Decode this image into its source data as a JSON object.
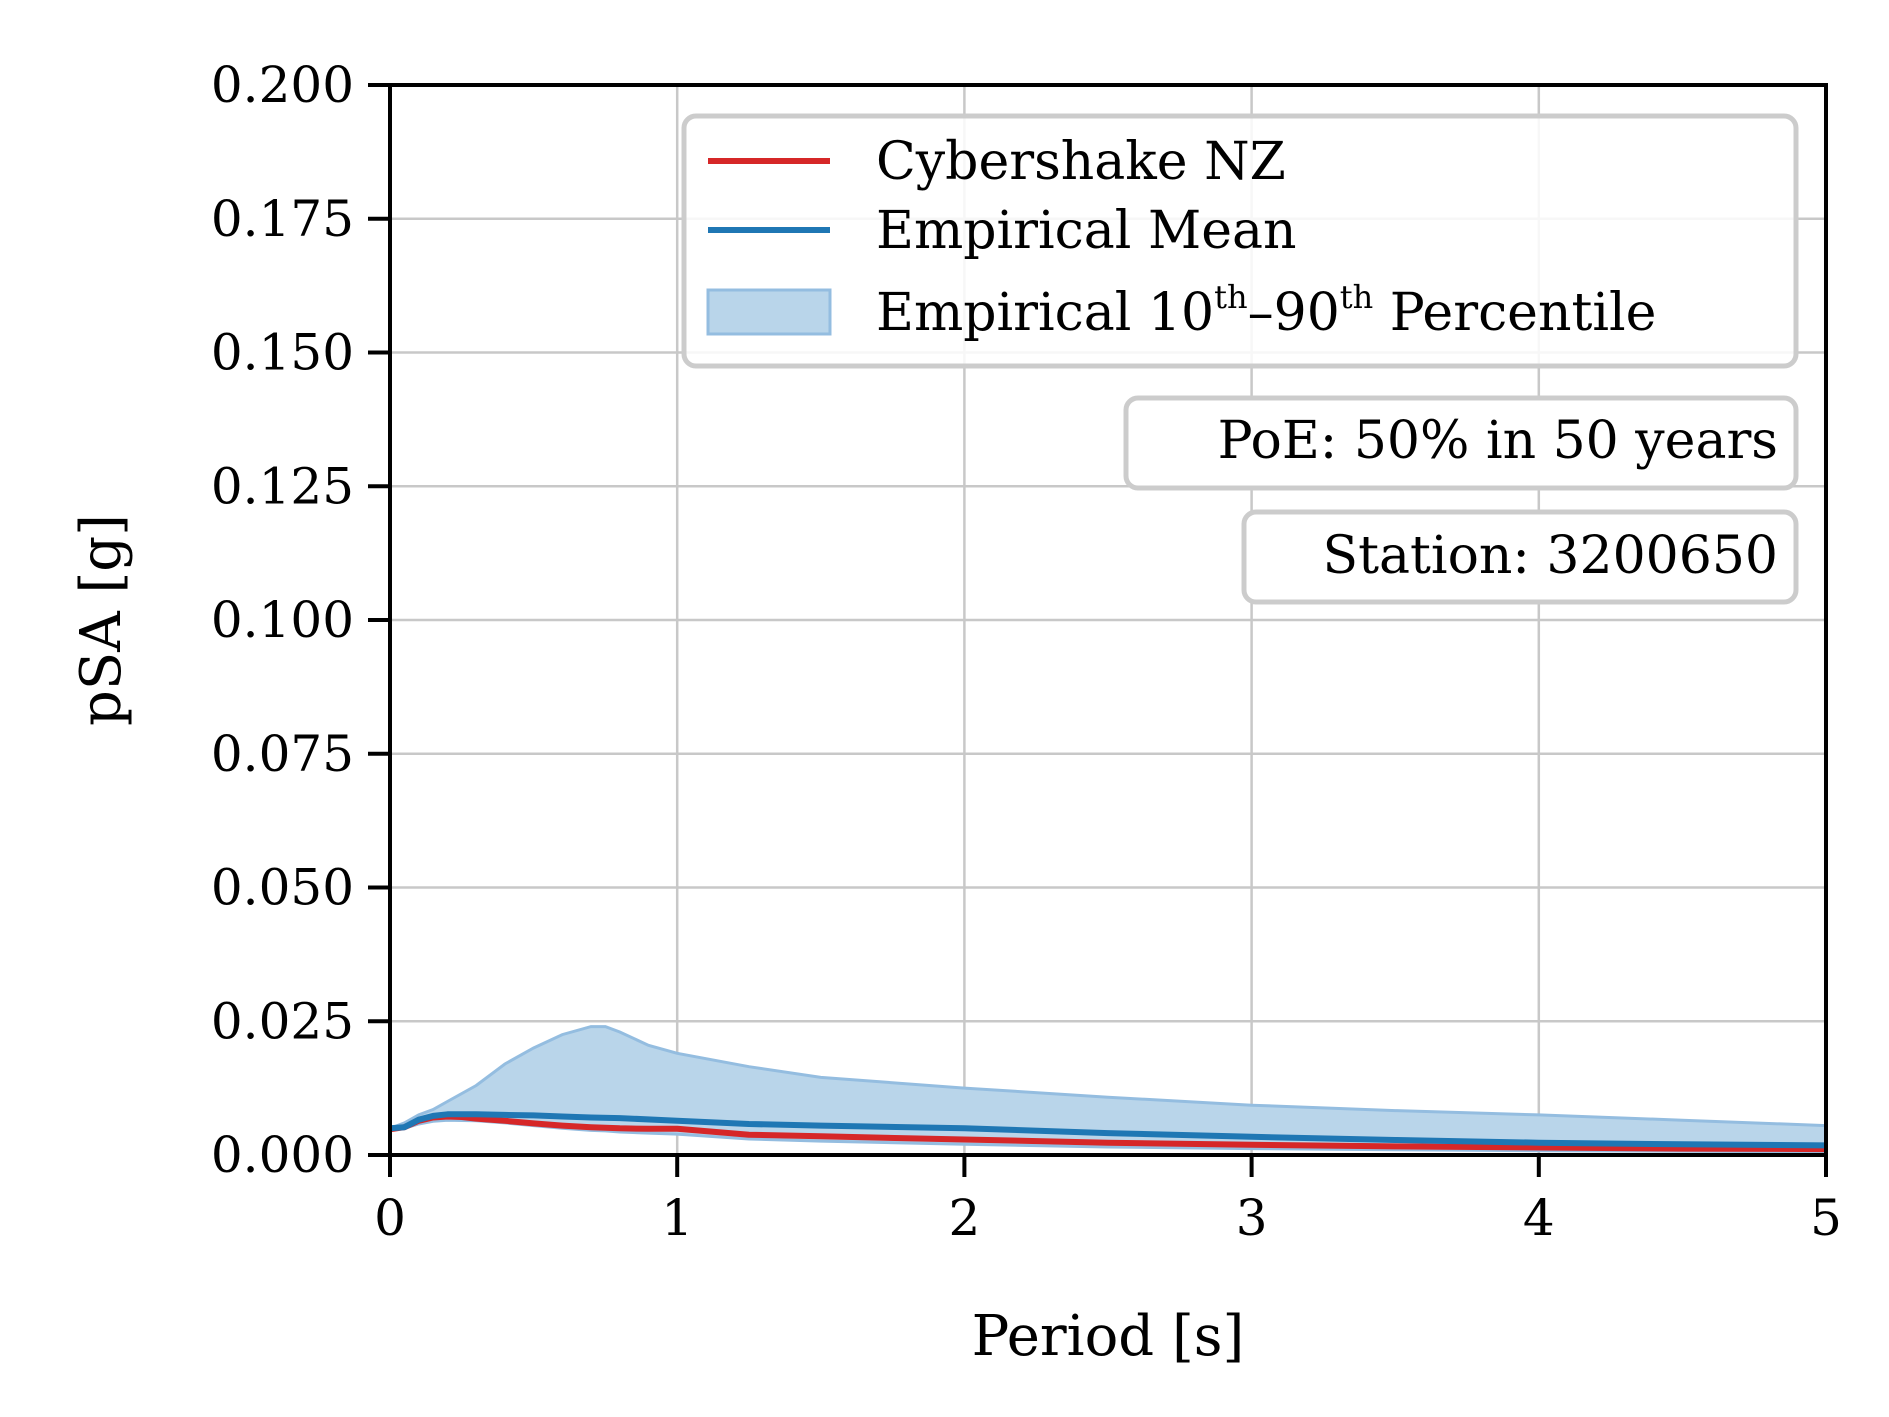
{
  "chart_data": {
    "type": "line",
    "xlabel": "Period [s]",
    "ylabel": "pSA [g]",
    "xlim": [
      0,
      5
    ],
    "ylim": [
      0,
      0.2
    ],
    "x_ticks": [
      0,
      1,
      2,
      3,
      4,
      5
    ],
    "x_tick_labels": [
      "0",
      "1",
      "2",
      "3",
      "4",
      "5"
    ],
    "y_ticks": [
      0,
      0.025,
      0.05,
      0.075,
      0.1,
      0.125,
      0.15,
      0.175,
      0.2
    ],
    "y_tick_labels": [
      "0.000",
      "0.025",
      "0.050",
      "0.075",
      "0.100",
      "0.125",
      "0.150",
      "0.175",
      "0.200"
    ],
    "grid": true,
    "legend_position": "top-right",
    "legend": {
      "cybershake": "Cybershake NZ",
      "mean": "Empirical Mean",
      "band_prefix": "Empirical 10",
      "band_sup1": "th",
      "band_dash": "–90",
      "band_sup2": "th",
      "band_suffix": " Percentile"
    },
    "annotations": [
      "PoE: 50% in 50 years",
      "Station: 3200650"
    ],
    "colors": {
      "cybershake": "#d62728",
      "mean": "#1f77b4",
      "band_fill": "#b9d5ea",
      "band_edge": "#94bde0"
    },
    "series": [
      {
        "name": "Cybershake NZ",
        "x": [
          0,
          0.05,
          0.1,
          0.15,
          0.2,
          0.25,
          0.3,
          0.4,
          0.5,
          0.6,
          0.7,
          0.75,
          0.8,
          0.9,
          1.0,
          1.25,
          1.5,
          2.0,
          2.5,
          3.0,
          3.5,
          4.0,
          4.5,
          5.0
        ],
        "y": [
          0.0048,
          0.0052,
          0.0064,
          0.007,
          0.0072,
          0.0071,
          0.0068,
          0.0064,
          0.0059,
          0.0055,
          0.0052,
          0.0051,
          0.005,
          0.0049,
          0.0049,
          0.0038,
          0.0035,
          0.0029,
          0.0023,
          0.0019,
          0.0016,
          0.0014,
          0.0012,
          0.0011
        ]
      },
      {
        "name": "Empirical Mean",
        "x": [
          0,
          0.05,
          0.1,
          0.15,
          0.2,
          0.3,
          0.4,
          0.5,
          0.6,
          0.7,
          0.8,
          1.0,
          1.25,
          1.5,
          2.0,
          2.5,
          3.0,
          3.5,
          4.0,
          4.5,
          5.0
        ],
        "y": [
          0.005,
          0.0052,
          0.0066,
          0.0073,
          0.0076,
          0.0076,
          0.0075,
          0.0074,
          0.0072,
          0.007,
          0.0069,
          0.0064,
          0.0058,
          0.0055,
          0.005,
          0.0041,
          0.0034,
          0.0028,
          0.0023,
          0.002,
          0.0018
        ]
      },
      {
        "name": "Empirical 10th–90th Percentile",
        "x": [
          0,
          0.05,
          0.1,
          0.15,
          0.2,
          0.3,
          0.4,
          0.5,
          0.6,
          0.7,
          0.75,
          0.8,
          0.9,
          1.0,
          1.25,
          1.5,
          2.0,
          2.5,
          3.0,
          3.5,
          4.0,
          4.5,
          5.0
        ],
        "upper": [
          0.005,
          0.006,
          0.0075,
          0.0085,
          0.01,
          0.013,
          0.017,
          0.02,
          0.0225,
          0.024,
          0.024,
          0.023,
          0.0205,
          0.019,
          0.0165,
          0.0145,
          0.0125,
          0.0108,
          0.0093,
          0.0083,
          0.0075,
          0.0065,
          0.0055
        ],
        "lower": [
          0.0048,
          0.005,
          0.0058,
          0.0063,
          0.0065,
          0.0064,
          0.006,
          0.0055,
          0.005,
          0.0046,
          0.0045,
          0.0043,
          0.0041,
          0.0039,
          0.003,
          0.0026,
          0.002,
          0.0015,
          0.0012,
          0.001,
          0.0008,
          0.0007,
          0.0006
        ]
      }
    ]
  }
}
